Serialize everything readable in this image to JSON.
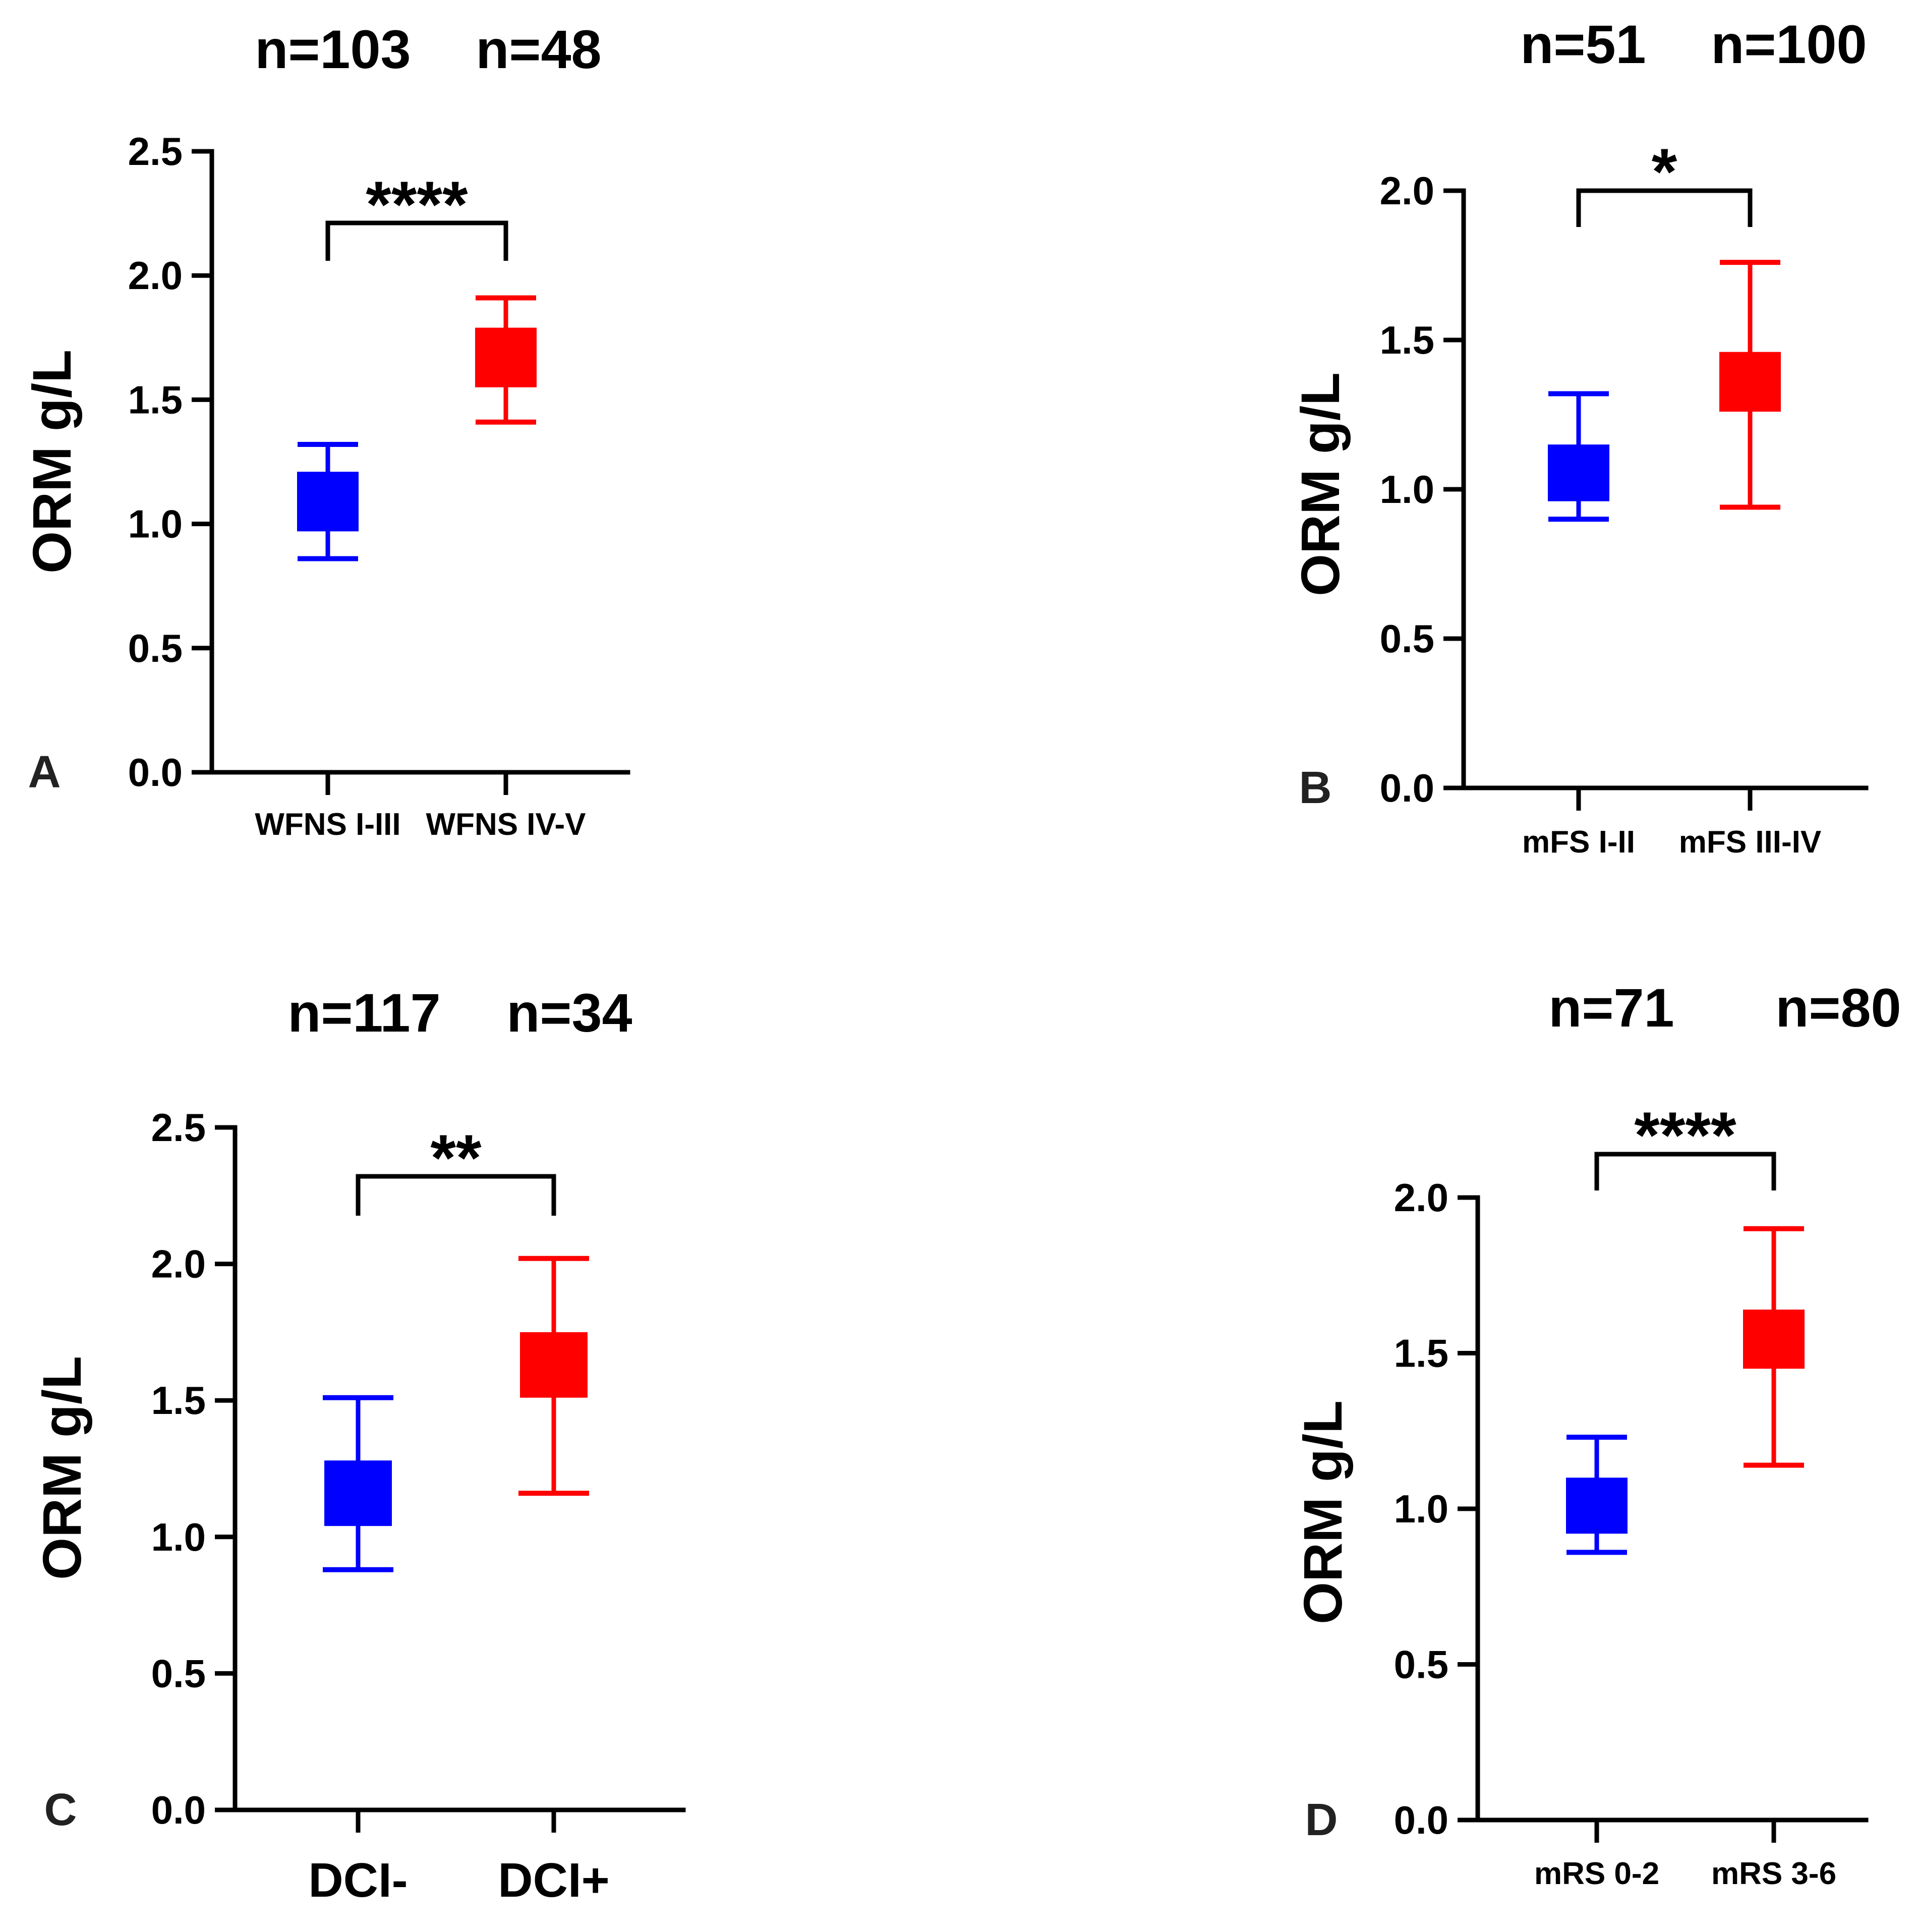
{
  "colors": {
    "group1": "#0000ff",
    "group2": "#ff0000",
    "axis": "#000000"
  },
  "chart_data": [
    {
      "panel": "A",
      "type": "box",
      "ylabel": "ORM g/L",
      "ylim": [
        0,
        2.5
      ],
      "yticks": [
        "0.0",
        "0.5",
        "1.0",
        "1.5",
        "2.0",
        "2.5"
      ],
      "categories": [
        "WFNS I-III",
        "WFNS IV-V"
      ],
      "n_labels": [
        "n=103",
        "n=48"
      ],
      "significance": "****",
      "series": [
        {
          "category": "WFNS I-III",
          "color": "#0000ff",
          "whisker_low": 0.86,
          "q1": 0.97,
          "q3": 1.21,
          "whisker_high": 1.32
        },
        {
          "category": "WFNS IV-V",
          "color": "#ff0000",
          "whisker_low": 1.41,
          "q1": 1.55,
          "q3": 1.79,
          "whisker_high": 1.91
        }
      ]
    },
    {
      "panel": "B",
      "type": "box",
      "ylabel": "ORM g/L",
      "ylim": [
        0,
        2.0
      ],
      "yticks": [
        "0.0",
        "0.5",
        "1.0",
        "1.5",
        "2.0"
      ],
      "categories": [
        "mFS I-II",
        "mFS III-IV"
      ],
      "n_labels": [
        "n=51",
        "n=100"
      ],
      "significance": "*",
      "series": [
        {
          "category": "mFS I-II",
          "color": "#0000ff",
          "whisker_low": 0.9,
          "q1": 0.96,
          "q3": 1.15,
          "whisker_high": 1.32
        },
        {
          "category": "mFS III-IV",
          "color": "#ff0000",
          "whisker_low": 0.94,
          "q1": 1.26,
          "q3": 1.46,
          "whisker_high": 1.76
        }
      ]
    },
    {
      "panel": "C",
      "type": "box",
      "ylabel": "ORM g/L",
      "ylim": [
        0,
        2.5
      ],
      "yticks": [
        "0.0",
        "0.5",
        "1.0",
        "1.5",
        "2.0",
        "2.5"
      ],
      "categories": [
        "DCI-",
        "DCI+"
      ],
      "n_labels": [
        "n=117",
        "n=34"
      ],
      "significance": "**",
      "series": [
        {
          "category": "DCI-",
          "color": "#0000ff",
          "whisker_low": 0.88,
          "q1": 1.04,
          "q3": 1.28,
          "whisker_high": 1.51
        },
        {
          "category": "DCI+",
          "color": "#ff0000",
          "whisker_low": 1.16,
          "q1": 1.51,
          "q3": 1.75,
          "whisker_high": 2.02
        }
      ]
    },
    {
      "panel": "D",
      "type": "box",
      "ylabel": "ORM g/L",
      "ylim": [
        0,
        2.0
      ],
      "yticks": [
        "0.0",
        "0.5",
        "1.0",
        "1.5",
        "2.0"
      ],
      "categories": [
        "mRS 0-2",
        "mRS 3-6"
      ],
      "n_labels": [
        "n=71",
        "n=80"
      ],
      "significance": "****",
      "series": [
        {
          "category": "mRS 0-2",
          "color": "#0000ff",
          "whisker_low": 0.86,
          "q1": 0.92,
          "q3": 1.1,
          "whisker_high": 1.23
        },
        {
          "category": "mRS 3-6",
          "color": "#ff0000",
          "whisker_low": 1.14,
          "q1": 1.45,
          "q3": 1.64,
          "whisker_high": 1.9
        }
      ]
    }
  ]
}
